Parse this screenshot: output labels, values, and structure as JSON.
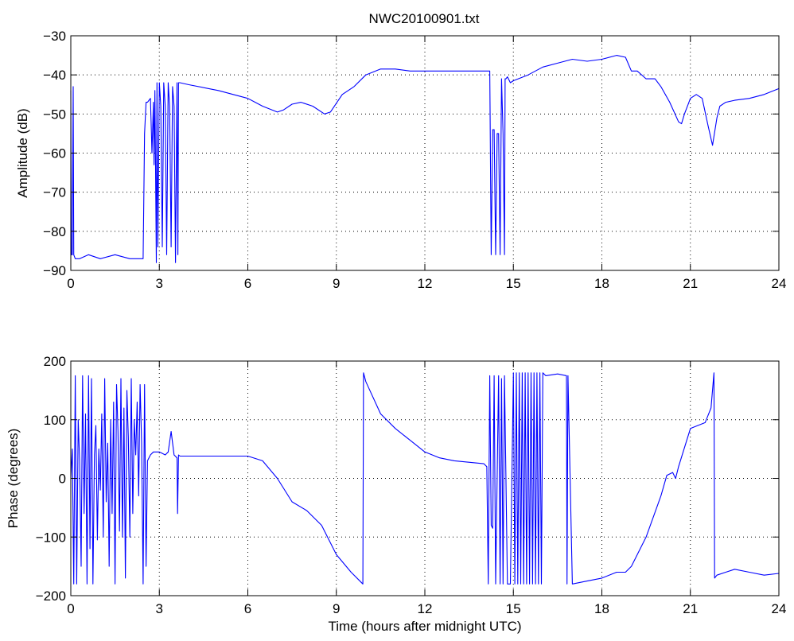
{
  "chart_data": [
    {
      "type": "line",
      "title": "NWC20100901.txt",
      "xlabel": "",
      "ylabel": "Amplitude (dB)",
      "xlim": [
        0,
        24
      ],
      "ylim": [
        -90,
        -30
      ],
      "xticks": [
        "0",
        "3",
        "6",
        "9",
        "12",
        "15",
        "18",
        "21",
        "24"
      ],
      "yticks": [
        "-90",
        "-80",
        "-70",
        "-60",
        "-50",
        "-40",
        "-30"
      ],
      "grid": true,
      "color": "#0000ff",
      "series": [
        {
          "x": [
            0,
            0.02,
            0.05,
            0.08,
            0.1,
            0.15,
            0.3,
            0.6,
            1.0,
            1.5,
            2.0,
            2.4,
            2.45,
            2.5,
            2.55,
            2.6,
            2.7,
            2.75,
            2.8,
            2.82,
            2.85,
            2.9,
            2.92,
            2.95,
            3.0,
            3.05,
            3.1,
            3.15,
            3.2,
            3.25,
            3.3,
            3.35,
            3.4,
            3.45,
            3.5,
            3.55,
            3.6,
            3.63,
            3.65,
            3.7,
            4.0,
            5.0,
            6.0,
            6.5,
            7.0,
            7.2,
            7.5,
            7.8,
            8.2,
            8.6,
            8.8,
            9.2,
            9.6,
            10.0,
            10.5,
            11.0,
            11.5,
            12.0,
            13.0,
            14.0,
            14.2,
            14.25,
            14.3,
            14.35,
            14.4,
            14.45,
            14.5,
            14.55,
            14.6,
            14.65,
            14.7,
            14.72,
            14.75,
            14.8,
            14.9,
            15.0,
            15.5,
            16.0,
            16.5,
            17.0,
            17.5,
            18.0,
            18.5,
            18.8,
            19.0,
            19.2,
            19.5,
            19.8,
            20.0,
            20.3,
            20.6,
            20.7,
            20.8,
            21.0,
            21.2,
            21.4,
            21.6,
            21.75,
            21.9,
            22.0,
            22.2,
            22.5,
            23.0,
            23.5,
            24.0
          ],
          "values": [
            -44,
            -86,
            -86,
            -43,
            -86,
            -87,
            -87,
            -86,
            -87,
            -86,
            -87,
            -87,
            -87,
            -55,
            -47,
            -47,
            -46,
            -60,
            -47,
            -63,
            -44,
            -88,
            -42,
            -84,
            -42,
            -48,
            -84,
            -42,
            -48,
            -86,
            -42,
            -48,
            -84,
            -43,
            -48,
            -88,
            -42,
            -86,
            -42,
            -42,
            -42.5,
            -44,
            -46,
            -48,
            -49.5,
            -49,
            -47.5,
            -47,
            -48,
            -50,
            -49.5,
            -45,
            -43,
            -40,
            -38.5,
            -38.5,
            -39,
            -39,
            -39,
            -39,
            -39,
            -86,
            -54,
            -54,
            -86,
            -55,
            -55,
            -86,
            -41,
            -55,
            -86,
            -41,
            -41,
            -40.5,
            -42,
            -41.5,
            -40,
            -38,
            -37,
            -36,
            -36.5,
            -36,
            -35,
            -35.5,
            -39,
            -39,
            -41,
            -41,
            -43,
            -47,
            -52,
            -52.5,
            -50,
            -46,
            -45,
            -46,
            -53,
            -58,
            -51,
            -48,
            -47,
            -46.5,
            -46,
            -45,
            -43.5
          ]
        }
      ]
    },
    {
      "type": "line",
      "title": "",
      "xlabel": "Time (hours after midnight UTC)",
      "ylabel": "Phase (degrees)",
      "xlim": [
        0,
        24
      ],
      "ylim": [
        -200,
        200
      ],
      "xticks": [
        "0",
        "3",
        "6",
        "9",
        "12",
        "15",
        "18",
        "21",
        "24"
      ],
      "yticks": [
        "-200",
        "-100",
        "0",
        "100",
        "200"
      ],
      "grid": true,
      "color": "#0000ff",
      "series": [
        {
          "x": [
            0,
            0.05,
            0.1,
            0.15,
            0.2,
            0.25,
            0.3,
            0.35,
            0.4,
            0.45,
            0.5,
            0.55,
            0.6,
            0.65,
            0.7,
            0.75,
            0.8,
            0.85,
            0.9,
            0.95,
            1.0,
            1.05,
            1.1,
            1.15,
            1.2,
            1.25,
            1.3,
            1.35,
            1.4,
            1.45,
            1.5,
            1.55,
            1.6,
            1.65,
            1.7,
            1.75,
            1.8,
            1.85,
            1.9,
            1.95,
            2.0,
            2.05,
            2.1,
            2.15,
            2.2,
            2.25,
            2.3,
            2.35,
            2.4,
            2.45,
            2.5,
            2.55,
            2.6,
            2.7,
            2.8,
            3.0,
            3.2,
            3.3,
            3.4,
            3.5,
            3.6,
            3.62,
            3.65,
            3.7,
            4.0,
            5.0,
            6.0,
            6.5,
            7.0,
            7.5,
            8.0,
            8.5,
            9.0,
            9.5,
            9.9,
            9.92,
            10.0,
            10.5,
            11.0,
            11.5,
            12.0,
            12.5,
            13.0,
            14.0,
            14.1,
            14.15,
            14.2,
            14.25,
            14.3,
            14.35,
            14.4,
            14.5,
            14.55,
            14.6,
            14.65,
            14.7,
            14.8,
            14.9,
            15.0,
            15.05,
            15.1,
            15.15,
            15.2,
            15.25,
            15.3,
            15.35,
            15.4,
            15.45,
            15.5,
            15.55,
            15.6,
            15.65,
            15.7,
            15.75,
            15.8,
            15.85,
            15.9,
            15.95,
            16.0,
            16.1,
            16.5,
            16.8,
            16.82,
            16.85,
            17.0,
            17.5,
            18.0,
            18.5,
            18.8,
            19.0,
            19.5,
            20.0,
            20.2,
            20.4,
            20.5,
            20.6,
            21.0,
            21.5,
            21.7,
            21.8,
            21.82,
            21.9,
            22.2,
            22.5,
            23.0,
            23.5,
            24.0
          ],
          "values": [
            0,
            50,
            -180,
            175,
            -180,
            100,
            30,
            -150,
            175,
            -60,
            110,
            -180,
            175,
            -120,
            170,
            -180,
            40,
            90,
            -105,
            50,
            -20,
            110,
            -100,
            170,
            -40,
            60,
            -150,
            100,
            -60,
            130,
            -180,
            160,
            80,
            -90,
            170,
            -100,
            120,
            -170,
            150,
            70,
            -100,
            170,
            -60,
            100,
            40,
            130,
            -30,
            160,
            60,
            -180,
            160,
            -150,
            30,
            40,
            45,
            45,
            40,
            45,
            80,
            40,
            35,
            -60,
            40,
            38,
            38,
            38,
            38,
            30,
            0,
            -40,
            -55,
            -80,
            -130,
            -160,
            -180,
            180,
            165,
            110,
            85,
            65,
            45,
            35,
            30,
            25,
            20,
            -180,
            175,
            -80,
            -85,
            175,
            -180,
            175,
            -180,
            170,
            -180,
            175,
            -180,
            -180,
            180,
            -180,
            180,
            -180,
            180,
            -180,
            180,
            -180,
            180,
            -180,
            180,
            -180,
            180,
            -180,
            180,
            -180,
            180,
            -180,
            180,
            -180,
            180,
            175,
            178,
            175,
            -180,
            175,
            -180,
            -175,
            -170,
            -160,
            -160,
            -150,
            -100,
            -30,
            5,
            10,
            0,
            20,
            85,
            95,
            120,
            180,
            -170,
            -165,
            -160,
            -155,
            -160,
            -165,
            -162
          ]
        }
      ]
    }
  ]
}
